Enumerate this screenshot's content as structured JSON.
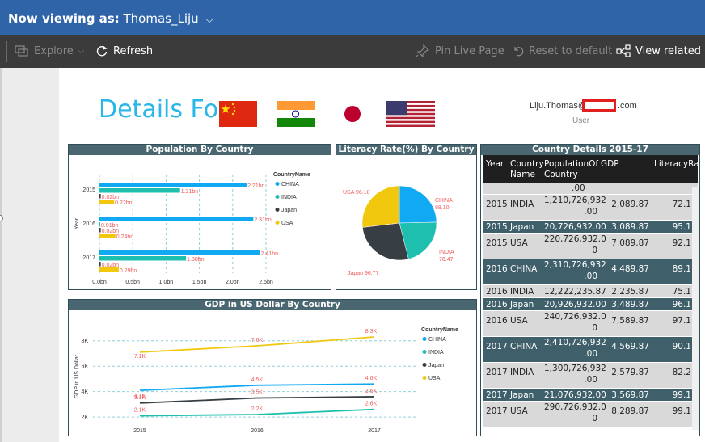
{
  "topbar": {
    "prefix": "Now viewing as:",
    "user": "Thomas_Liju",
    "chevron": "⌵"
  },
  "toolbar": {
    "explore": "Explore",
    "refresh": "Refresh",
    "pin": "Pin Live Page",
    "reset": "Reset to default",
    "view_related": "View related"
  },
  "report": {
    "heading": "Details For",
    "flags": [
      "china-flag",
      "india-flag",
      "japan-flag",
      "usa-flag"
    ],
    "user_email_start": "Liju.Thomas@",
    "user_email_end": ".com",
    "user_label": "User"
  },
  "colors": {
    "china": "#11a9f2",
    "india": "#1fbfb0",
    "japan": "#383f44",
    "usa": "#f2c80f",
    "label": "#f05a5a"
  },
  "population_chart": {
    "title": "Population By Country",
    "legend_title": "CountryName",
    "ylabel": "Year",
    "xlabel": "Population",
    "xticks": [
      "0.0bn",
      "0.5bn",
      "1.0bn",
      "1.5bn",
      "2.0bn",
      "2.5bn"
    ],
    "chart_data": {
      "type": "bar",
      "categories": [
        "2015",
        "2016",
        "2017"
      ],
      "series": [
        {
          "name": "CHINA",
          "values": [
            2.21,
            2.31,
            2.41
          ],
          "labels": [
            "2.21bn",
            "2.31bn",
            "2.41bn"
          ]
        },
        {
          "name": "INDIA",
          "values": [
            1.21,
            0.01,
            1.3
          ],
          "labels": [
            "1.21bn",
            "0.01bn",
            "1.30bn"
          ]
        },
        {
          "name": "Japan",
          "values": [
            0.02,
            0.02,
            0.02
          ],
          "labels": [
            "0.02bn",
            "0.02bn",
            "0.02bn"
          ]
        },
        {
          "name": "USA",
          "values": [
            0.22,
            0.24,
            0.29
          ],
          "labels": [
            "0.22bn",
            "0.24bn",
            "0.29bn"
          ]
        }
      ],
      "xlim": [
        0,
        2.5
      ]
    }
  },
  "literacy_chart": {
    "title": "Literacy Rate(%) By Country",
    "chart_data": {
      "type": "pie",
      "categories": [
        "CHINA",
        "INDIA",
        "Japan",
        "USA"
      ],
      "values": [
        88.1,
        76.47,
        96.77,
        96.1
      ],
      "labels": [
        "CHINA\n88.10",
        "INDIA\n76.47",
        "Japan 96.77",
        "USA 96.10"
      ]
    }
  },
  "gdp_chart": {
    "title": "GDP in US Dollar By Country",
    "legend_title": "CountryName",
    "ylabel": "GDP in US Dollar",
    "xlabel": "Year",
    "yticks": [
      "2K",
      "4K",
      "6K",
      "8K"
    ],
    "chart_data": {
      "type": "line",
      "x": [
        "2015",
        "2016",
        "2017"
      ],
      "series": [
        {
          "name": "CHINA",
          "values": [
            4.1,
            4.5,
            4.6
          ],
          "labels": [
            "4.1K",
            "4.5K",
            "4.6K"
          ]
        },
        {
          "name": "INDIA",
          "values": [
            2.1,
            2.2,
            2.6
          ],
          "labels": [
            "2.1K",
            "2.2K",
            "2.6K"
          ]
        },
        {
          "name": "Japan",
          "values": [
            3.1,
            3.5,
            3.6
          ],
          "labels": [
            "3.1K",
            "3.5K",
            "3.6K"
          ]
        },
        {
          "name": "USA",
          "values": [
            7.1,
            7.6,
            8.3
          ],
          "labels": [
            "7.1K",
            "7.6K",
            "8.3K"
          ]
        }
      ],
      "ylim": [
        1.5,
        9.0
      ]
    }
  },
  "table": {
    "title": "Country Details 2015-17",
    "columns": [
      "Year",
      "Country Name",
      "PopulationOf Country",
      "GDP",
      "LiteracyRate"
    ],
    "partial_top": ".00",
    "rows": [
      {
        "year": "2015",
        "country": "INDIA",
        "pop": "1,210,726,932 .00",
        "gdp": "2,089.87",
        "lit": "72.1",
        "dark": false
      },
      {
        "year": "2015",
        "country": "Japan",
        "pop": "20,726,932.00",
        "gdp": "3,089.87",
        "lit": "95.1",
        "dark": true
      },
      {
        "year": "2015",
        "country": "USA",
        "pop": "220,726,932.0 0",
        "gdp": "7,089.87",
        "lit": "92.1",
        "dark": false
      },
      {
        "year": "2016",
        "country": "CHINA",
        "pop": "2,310,726,932 .00",
        "gdp": "4,489.87",
        "lit": "89.1",
        "dark": true
      },
      {
        "year": "2016",
        "country": "INDIA",
        "pop": "12,222,235.87",
        "gdp": "2,235.87",
        "lit": "75.1",
        "dark": false
      },
      {
        "year": "2016",
        "country": "Japan",
        "pop": "20,926,932.00",
        "gdp": "3,489.87",
        "lit": "96.1",
        "dark": true
      },
      {
        "year": "2016",
        "country": "USA",
        "pop": "240,726,932.0 0",
        "gdp": "7,589.87",
        "lit": "97.1",
        "dark": false
      },
      {
        "year": "2017",
        "country": "CHINA",
        "pop": "2,410,726,932 .00",
        "gdp": "4,569.87",
        "lit": "90.1",
        "dark": true
      },
      {
        "year": "2017",
        "country": "INDIA",
        "pop": "1,300,726,932 .00",
        "gdp": "2,579.87",
        "lit": "82.2",
        "dark": false
      },
      {
        "year": "2017",
        "country": "Japan",
        "pop": "21,076,932.00",
        "gdp": "3,569.87",
        "lit": "99.1",
        "dark": true
      },
      {
        "year": "2017",
        "country": "USA",
        "pop": "290,726,932.0 0",
        "gdp": "8,289.87",
        "lit": "99.1",
        "dark": false
      }
    ]
  }
}
